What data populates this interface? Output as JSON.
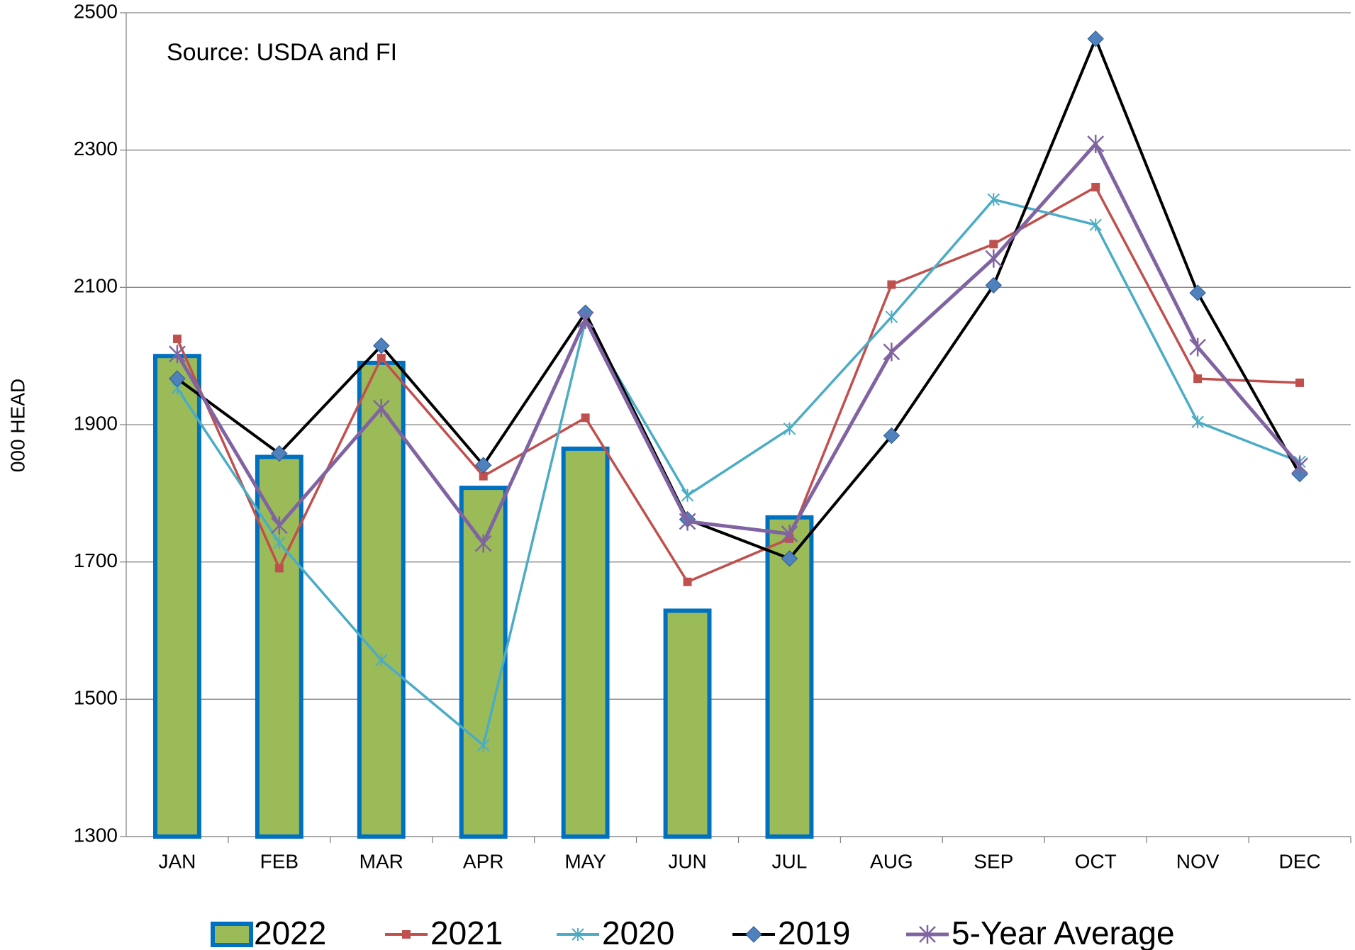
{
  "chart_data": {
    "type": "combo",
    "annotation": "Source: USDA and FI",
    "y_label": "000 HEAD",
    "categories": [
      "JAN",
      "FEB",
      "MAR",
      "APR",
      "MAY",
      "JUN",
      "JUL",
      "AUG",
      "SEP",
      "OCT",
      "NOV",
      "DEC"
    ],
    "ylim": [
      1300,
      2500
    ],
    "yticks": [
      1300,
      1500,
      1700,
      1900,
      2100,
      2300,
      2500
    ],
    "grid": true,
    "legend": "bottom",
    "series": [
      {
        "name": "2022",
        "type": "bar",
        "color": "#9bbb59",
        "edge_color": "#0070c0",
        "values": [
          2000,
          1853,
          1990,
          1808,
          1865,
          1629,
          1765,
          null,
          null,
          null,
          null,
          null
        ]
      },
      {
        "name": "2021",
        "type": "line",
        "marker": "square",
        "color": "#c0504d",
        "values": [
          2025,
          1691,
          1997,
          1825,
          1910,
          1671,
          1734,
          2104,
          2163,
          2246,
          1967,
          1961
        ]
      },
      {
        "name": "2020",
        "type": "line",
        "marker": "asterisk",
        "color": "#4bacc6",
        "values": [
          1953,
          1728,
          1557,
          1433,
          2051,
          1797,
          1894,
          2057,
          2228,
          2191,
          1904,
          1846
        ]
      },
      {
        "name": "2019",
        "type": "line",
        "marker": "diamond",
        "color": "#000000",
        "marker_color": "#4f81bd",
        "values": [
          1967,
          1858,
          2015,
          1841,
          2063,
          1762,
          1705,
          1884,
          2103,
          2462,
          2092,
          1828
        ]
      },
      {
        "name": "5-Year Average",
        "type": "line",
        "marker": "star",
        "color": "#8064a2",
        "values": [
          2003,
          1753,
          1924,
          1727,
          2053,
          1759,
          1741,
          2006,
          2142,
          2309,
          2013,
          1840
        ]
      }
    ]
  }
}
